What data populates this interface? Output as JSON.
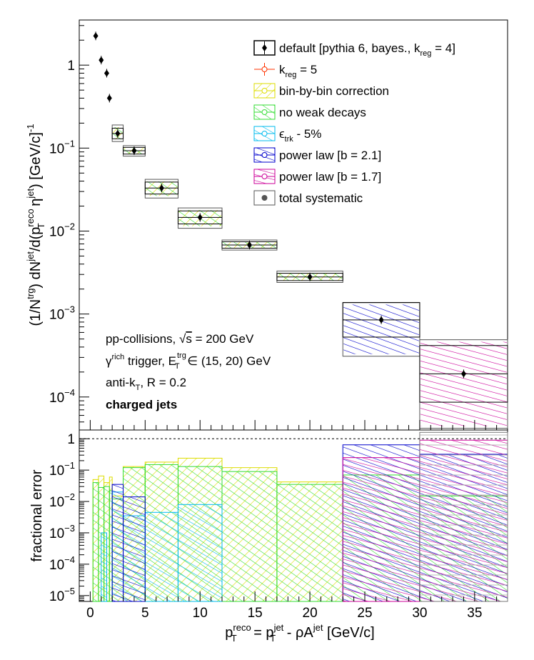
{
  "chart_data": [
    {
      "type": "scatter",
      "panel": "top",
      "ylabel_parts": {
        "a": "(1/N",
        "a_sup": "trg",
        "b": ") dN",
        "b_sup": "jet",
        "c": "/d(p",
        "c_sup": "reco",
        "c_sub": "T",
        "d": " η",
        "d_sup": "jet",
        "e": ") [GeV/c]",
        "e_sup": "-1"
      },
      "y_scale": "log",
      "ylim": [
        4e-05,
        3.5
      ],
      "xlim": [
        -1,
        38
      ],
      "y_ticks": [
        {
          "value": 1,
          "label": "1"
        },
        {
          "value": 0.1,
          "base": "10",
          "exp": "−1"
        },
        {
          "value": 0.01,
          "base": "10",
          "exp": "−2"
        },
        {
          "value": 0.001,
          "base": "10",
          "exp": "−3"
        },
        {
          "value": 0.0001,
          "base": "10",
          "exp": "−4"
        }
      ],
      "series": [
        {
          "name": "default",
          "marker": "diamond",
          "color": "#000000",
          "points": [
            {
              "x": 0.5,
              "y": 2.25
            },
            {
              "x": 1.0,
              "y": 1.15
            },
            {
              "x": 1.5,
              "y": 0.8
            },
            {
              "x": 1.75,
              "y": 0.4
            },
            {
              "x": 2.5,
              "y": 0.15
            },
            {
              "x": 4.0,
              "y": 0.093
            },
            {
              "x": 6.5,
              "y": 0.033
            },
            {
              "x": 10.0,
              "y": 0.0146
            },
            {
              "x": 14.5,
              "y": 0.0068
            },
            {
              "x": 20.0,
              "y": 0.0028
            },
            {
              "x": 26.5,
              "y": 0.00085
            },
            {
              "x": 34.0,
              "y": 0.00019
            }
          ]
        }
      ],
      "systematic_boxes": [
        {
          "x0": 2,
          "x1": 3,
          "y0": 0.12,
          "y1": 0.19,
          "fill": "#e0e000"
        },
        {
          "x0": 3,
          "x1": 5,
          "y0": 0.08,
          "y1": 0.107,
          "fill": "#e0e000"
        },
        {
          "x0": 5,
          "x1": 8,
          "y0": 0.025,
          "y1": 0.042,
          "fill": "#e0e000"
        },
        {
          "x0": 8,
          "x1": 12,
          "y0": 0.0108,
          "y1": 0.019,
          "fill": "#e0e000"
        },
        {
          "x0": 12,
          "x1": 17,
          "y0": 0.0059,
          "y1": 0.0078,
          "fill": "#e0e000"
        },
        {
          "x0": 17,
          "x1": 23,
          "y0": 0.0024,
          "y1": 0.0033,
          "fill": "#e0e000"
        },
        {
          "x0": 23,
          "x1": 30,
          "y0": 0.00031,
          "y1": 0.00138,
          "fill": "#9900cc"
        },
        {
          "x0": 30,
          "x1": 38,
          "y0": 4.2e-05,
          "y1": 0.00049,
          "fill": "#cc00cc"
        }
      ],
      "legend": [
        {
          "label_main": "default [pythia 6, bayes., k",
          "label_sub": "reg",
          "label_tail": " = 4]",
          "color": "#000000",
          "style": "default"
        },
        {
          "label_main": "k",
          "label_sub": "reg",
          "label_tail": " = 5",
          "color": "#ff3300",
          "style": "open-circle"
        },
        {
          "label_main": "bin-by-bin correction",
          "label_sub": "",
          "label_tail": "",
          "color": "#dddd00",
          "style": "hatch"
        },
        {
          "label_main": "no weak decays",
          "label_sub": "",
          "label_tail": "",
          "color": "#33dd33",
          "style": "hatch"
        },
        {
          "label_main": "ϵ",
          "label_sub": "trk",
          "label_tail": " - 5%",
          "color": "#00bbee",
          "style": "hatch"
        },
        {
          "label_main": "power law [b = 2.1]",
          "label_sub": "",
          "label_tail": "",
          "color": "#0000cc",
          "style": "hatch"
        },
        {
          "label_main": "power law [b = 1.7]",
          "label_sub": "",
          "label_tail": "",
          "color": "#cc0099",
          "style": "hatch"
        },
        {
          "label_main": "total systematic",
          "label_sub": "",
          "label_tail": "",
          "color": "#555555",
          "style": "gray-box"
        }
      ],
      "annotations": {
        "line1": "pp-collisions, ",
        "line1_sqrt": "√",
        "line1_s": "s",
        "line1_tail": " = 200 GeV",
        "line2_a": "γ",
        "line2_sup": "rich",
        "line2_b": " trigger, E",
        "line2_sup2": "trg",
        "line2_sub2": "T",
        "line2_c": " ∈ (15, 20) GeV",
        "line3_a": "anti-k",
        "line3_sub": "T",
        "line3_b": ", R = 0.2",
        "line4": "charged jets"
      }
    },
    {
      "type": "histogram",
      "panel": "bottom",
      "ylabel": "fractional error",
      "y_scale": "log",
      "ylim": [
        6.5e-06,
        1.9
      ],
      "xlim": [
        -1,
        38
      ],
      "reference_line": 1,
      "y_ticks": [
        {
          "value": 1,
          "label": "1"
        },
        {
          "value": 0.1,
          "base": "10",
          "exp": "−1"
        },
        {
          "value": 0.01,
          "base": "10",
          "exp": "−2"
        },
        {
          "value": 0.001,
          "base": "10",
          "exp": "−3"
        },
        {
          "value": 0.0001,
          "base": "10",
          "exp": "−4"
        },
        {
          "value": 1e-05,
          "base": "10",
          "exp": "−5"
        }
      ],
      "x_ticks": [
        0,
        5,
        10,
        15,
        20,
        25,
        30,
        35
      ],
      "xlabel_parts": {
        "a": "p",
        "a_sup": "reco",
        "a_sub": "T",
        "b": " = p",
        "b_sup": "jet",
        "b_sub": "T",
        "c": " - ρA",
        "c_sup": "jet",
        "d": " [GeV/c]"
      },
      "series": [
        {
          "name": "bin-by-bin correction",
          "color": "#dddd00",
          "bins": [
            [
              0.25,
              0.75,
              0.05
            ],
            [
              0.75,
              1.25,
              0.065
            ],
            [
              1.25,
              1.75,
              0.04
            ],
            [
              1.75,
              2,
              0.06
            ],
            [
              2,
              3,
              0.015
            ],
            [
              3,
              5,
              0.13
            ],
            [
              5,
              8,
              0.18
            ],
            [
              8,
              12,
              0.24
            ],
            [
              12,
              17,
              0.12
            ],
            [
              17,
              23,
              0.042
            ]
          ]
        },
        {
          "name": "no weak decays",
          "color": "#33dd33",
          "bins": [
            [
              0.25,
              0.75,
              0.04
            ],
            [
              0.75,
              1.25,
              0.028
            ],
            [
              1.25,
              1.75,
              0.03
            ],
            [
              1.75,
              2,
              0.022
            ],
            [
              2,
              3,
              0.012
            ],
            [
              3,
              5,
              0.12
            ],
            [
              5,
              8,
              0.15
            ],
            [
              8,
              12,
              0.13
            ],
            [
              12,
              17,
              0.09
            ],
            [
              17,
              23,
              0.035
            ],
            [
              23,
              30,
              0.07
            ],
            [
              30,
              38,
              0.015
            ]
          ]
        },
        {
          "name": "ϵtrk - 5%",
          "color": "#00bbee",
          "bins": [
            [
              1.0,
              1.5,
              0.001
            ],
            [
              2,
              3,
              0.02
            ],
            [
              3,
              5,
              0.0035
            ],
            [
              5,
              8,
              0.0045
            ],
            [
              8,
              12,
              0.008
            ]
          ]
        },
        {
          "name": "power law [b = 2.1]",
          "color": "#0000cc",
          "bins": [
            [
              2,
              3,
              0.035
            ],
            [
              3,
              5,
              0.014
            ],
            [
              23,
              30,
              0.64
            ],
            [
              30,
              38,
              0.32
            ]
          ]
        },
        {
          "name": "power law [b = 1.7]",
          "color": "#cc0099",
          "bins": [
            [
              23,
              30,
              0.25
            ],
            [
              30,
              38,
              0.9
            ]
          ]
        },
        {
          "name": "total systematic",
          "color": "#777777",
          "bins": [
            [
              30,
              38,
              1.6
            ]
          ]
        }
      ]
    }
  ]
}
